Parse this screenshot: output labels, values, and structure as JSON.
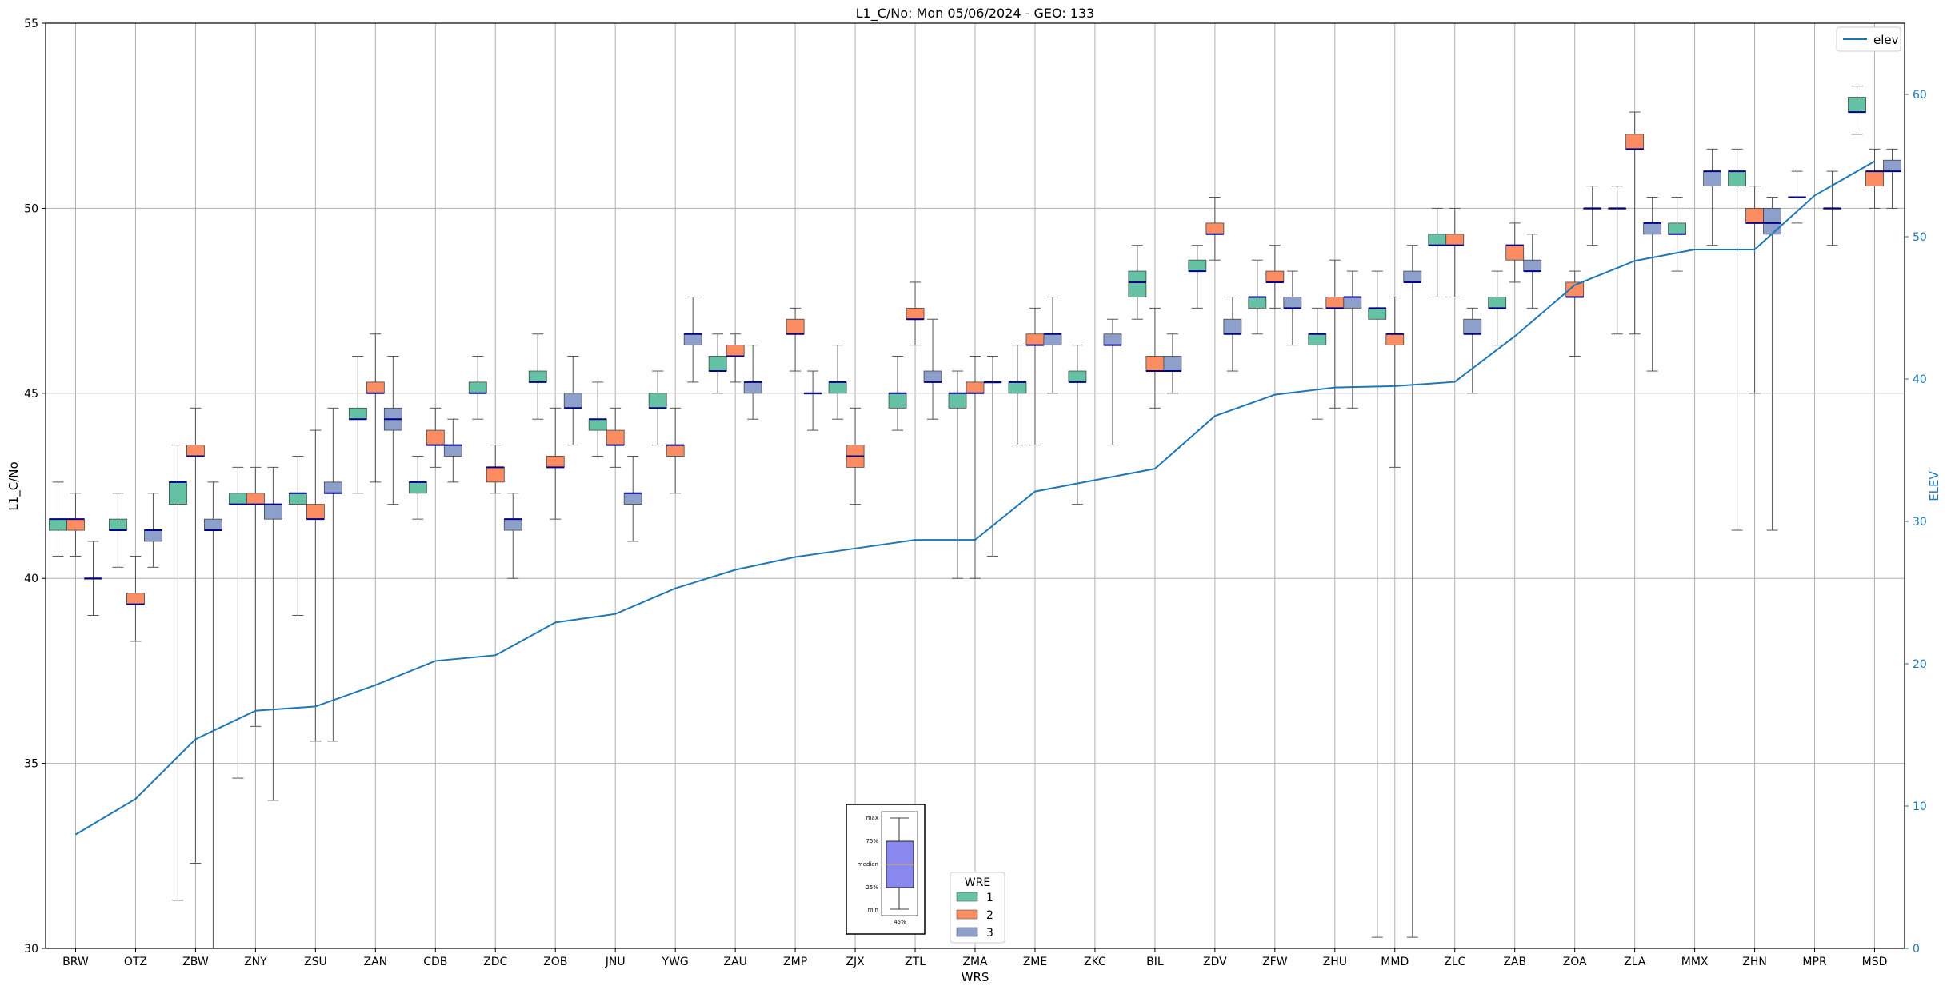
{
  "chart_data": {
    "type": "box",
    "title": "L1_C/No: Mon 05/06/2024 - GEO: 133",
    "xlabel": "WRS",
    "ylabel": "L1_C/No",
    "ylabel_right": "ELEV",
    "ylim": [
      30,
      55
    ],
    "ylim_right": [
      0,
      65
    ],
    "yticks": [
      30,
      35,
      40,
      45,
      50,
      55
    ],
    "yticks_right": [
      0,
      10,
      20,
      30,
      40,
      50,
      60
    ],
    "grid": true,
    "colors": {
      "1": "#66c2a5",
      "2": "#fc8d62",
      "3": "#8da0cb",
      "elev": "#1f77b4",
      "median": "#00008b"
    },
    "categories": [
      "BRW",
      "OTZ",
      "ZBW",
      "ZNY",
      "ZSU",
      "ZAN",
      "CDB",
      "ZDC",
      "ZOB",
      "JNU",
      "YWG",
      "ZAU",
      "ZMP",
      "ZJX",
      "ZTL",
      "ZMA",
      "ZME",
      "ZKC",
      "BIL",
      "ZDV",
      "ZFW",
      "ZHU",
      "MMD",
      "ZLC",
      "ZAB",
      "ZOA",
      "ZLA",
      "MMX",
      "ZHN",
      "MPR",
      "MSD"
    ],
    "elev": [
      8,
      10.5,
      14.7,
      16.7,
      17,
      18.5,
      20.2,
      20.6,
      22.9,
      23.5,
      25.3,
      26.6,
      27.5,
      28.1,
      28.7,
      28.7,
      32.1,
      32.9,
      33.7,
      37.4,
      38.9,
      39.4,
      39.5,
      39.8,
      43,
      46.6,
      48.3,
      49.1,
      49.1,
      52.9,
      55.3
    ],
    "legend_title": "WRE",
    "legend_elev": "elev",
    "series": [
      {
        "name": "1",
        "boxes": [
          [
            0,
            40.6,
            41.3,
            41.6,
            41.6,
            42.6
          ],
          [
            1,
            40.3,
            41.3,
            41.3,
            41.6,
            42.3
          ],
          [
            2,
            31.3,
            42,
            42.6,
            42.6,
            43.6
          ],
          [
            3,
            34.6,
            42,
            42,
            42.3,
            43
          ],
          [
            4,
            39,
            42,
            42.3,
            42.3,
            43.3
          ],
          [
            5,
            42.3,
            44.3,
            44.3,
            44.6,
            46
          ],
          [
            6,
            41.6,
            42.3,
            42.6,
            42.6,
            43.3
          ],
          [
            7,
            44.3,
            45,
            45,
            45.3,
            46
          ],
          [
            8,
            44.3,
            45.3,
            45.3,
            45.6,
            46.6
          ],
          [
            9,
            43.3,
            44,
            44.3,
            44.3,
            45.3
          ],
          [
            10,
            43.6,
            44.6,
            44.6,
            45,
            45.6
          ],
          [
            11,
            45,
            45.6,
            45.6,
            46,
            46.6
          ],
          [
            13,
            44.3,
            45,
            45.3,
            45.3,
            46.3
          ],
          [
            14,
            44,
            44.6,
            45,
            45,
            46
          ],
          [
            15,
            40,
            44.6,
            45,
            45,
            45.6
          ],
          [
            16,
            43.6,
            45,
            45.3,
            45.3,
            46.3
          ],
          [
            17,
            42,
            45.3,
            45.3,
            45.6,
            46.3
          ],
          [
            18,
            47,
            47.6,
            48,
            48.3,
            49
          ],
          [
            19,
            47.3,
            48.3,
            48.3,
            48.6,
            49
          ],
          [
            20,
            46.6,
            47.3,
            47.6,
            47.6,
            48.6
          ],
          [
            21,
            44.3,
            46.3,
            46.6,
            46.6,
            47.3
          ],
          [
            22,
            30.3,
            47,
            47.3,
            47.3,
            48.3
          ],
          [
            23,
            47.6,
            49,
            49,
            49.3,
            50
          ],
          [
            24,
            46.3,
            47.3,
            47.3,
            47.6,
            48.3
          ],
          [
            26,
            46.6,
            50,
            50,
            50,
            50.6
          ],
          [
            27,
            48.3,
            49.3,
            49.3,
            49.6,
            50.3
          ],
          [
            28,
            41.3,
            50.6,
            51,
            51,
            51.6
          ],
          [
            29,
            49.6,
            50.3,
            50.3,
            50.3,
            51
          ],
          [
            30,
            52,
            52.6,
            52.6,
            53,
            53.3
          ]
        ]
      },
      {
        "name": "2",
        "boxes": [
          [
            0,
            40.6,
            41.3,
            41.6,
            41.6,
            42.3
          ],
          [
            1,
            38.3,
            39.3,
            39.3,
            39.6,
            40.6
          ],
          [
            2,
            32.3,
            43.3,
            43.3,
            43.6,
            44.6
          ],
          [
            3,
            36,
            42,
            42,
            42.3,
            43
          ],
          [
            4,
            35.6,
            41.6,
            41.6,
            42,
            44
          ],
          [
            5,
            42.6,
            45,
            45,
            45.3,
            46.6
          ],
          [
            6,
            43,
            43.6,
            43.6,
            44,
            44.6
          ],
          [
            7,
            42.3,
            42.6,
            43,
            43,
            43.6
          ],
          [
            8,
            41.6,
            43,
            43,
            43.3,
            44.6
          ],
          [
            9,
            43,
            43.6,
            43.6,
            44,
            44.6
          ],
          [
            10,
            42.3,
            43.3,
            43.6,
            43.6,
            44.6
          ],
          [
            11,
            45.3,
            46,
            46,
            46.3,
            46.6
          ],
          [
            12,
            45.6,
            46.6,
            46.6,
            47,
            47.3
          ],
          [
            13,
            42,
            43,
            43.3,
            43.6,
            44.6
          ],
          [
            14,
            46.3,
            47,
            47,
            47.3,
            48
          ],
          [
            15,
            40,
            45,
            45,
            45.3,
            46
          ],
          [
            16,
            43.6,
            46.3,
            46.3,
            46.6,
            47.3
          ],
          [
            18,
            44.6,
            45.6,
            45.6,
            46,
            47.3
          ],
          [
            19,
            48.6,
            49.3,
            49.3,
            49.6,
            50.3
          ],
          [
            20,
            47.3,
            48,
            48,
            48.3,
            49
          ],
          [
            21,
            44.6,
            47.3,
            47.3,
            47.6,
            48.6
          ],
          [
            22,
            43,
            46.3,
            46.6,
            46.6,
            47.6
          ],
          [
            23,
            47.6,
            49,
            49,
            49.3,
            50
          ],
          [
            24,
            48,
            48.6,
            49,
            49,
            49.6
          ],
          [
            25,
            46,
            47.6,
            47.6,
            48,
            48.3
          ],
          [
            26,
            46.6,
            51.6,
            51.6,
            52,
            52.6
          ],
          [
            28,
            45,
            49.6,
            49.6,
            50,
            50.6
          ],
          [
            30,
            50,
            50.6,
            51,
            51,
            51.6
          ]
        ]
      },
      {
        "name": "3",
        "boxes": [
          [
            0,
            39,
            40,
            40,
            40,
            41
          ],
          [
            1,
            40.3,
            41,
            41.3,
            41.3,
            42.3
          ],
          [
            2,
            30,
            41.3,
            41.3,
            41.6,
            42.6
          ],
          [
            3,
            34,
            41.6,
            42,
            42,
            43
          ],
          [
            4,
            35.6,
            42.3,
            42.3,
            42.6,
            44.6
          ],
          [
            5,
            42,
            44,
            44.3,
            44.6,
            46
          ],
          [
            6,
            42.6,
            43.3,
            43.6,
            43.6,
            44.3
          ],
          [
            7,
            40,
            41.3,
            41.6,
            41.6,
            42.3
          ],
          [
            8,
            43.6,
            44.6,
            44.6,
            45,
            46
          ],
          [
            9,
            41,
            42,
            42.3,
            42.3,
            43.3
          ],
          [
            10,
            45.3,
            46.3,
            46.6,
            46.6,
            47.6
          ],
          [
            11,
            44.3,
            45,
            45.3,
            45.3,
            46.3
          ],
          [
            12,
            44,
            45,
            45,
            45,
            45.6
          ],
          [
            14,
            44.3,
            45.3,
            45.3,
            45.6,
            47
          ],
          [
            15,
            40.6,
            45.3,
            45.3,
            45.3,
            46
          ],
          [
            16,
            45,
            46.3,
            46.6,
            46.6,
            47.6
          ],
          [
            17,
            43.6,
            46.3,
            46.3,
            46.6,
            47
          ],
          [
            18,
            45,
            45.6,
            45.6,
            46,
            46.6
          ],
          [
            19,
            45.6,
            46.6,
            46.6,
            47,
            47.6
          ],
          [
            20,
            46.3,
            47.3,
            47.3,
            47.6,
            48.3
          ],
          [
            21,
            44.6,
            47.3,
            47.6,
            47.6,
            48.3
          ],
          [
            22,
            30.3,
            48,
            48,
            48.3,
            49
          ],
          [
            23,
            45,
            46.6,
            46.6,
            47,
            47.3
          ],
          [
            24,
            47.3,
            48.3,
            48.3,
            48.6,
            49.3
          ],
          [
            25,
            49,
            50,
            50,
            50,
            50.6
          ],
          [
            26,
            45.6,
            49.3,
            49.6,
            49.6,
            50.3
          ],
          [
            27,
            49,
            50.6,
            51,
            51,
            51.6
          ],
          [
            28,
            41.3,
            49.3,
            49.6,
            50,
            50.3
          ],
          [
            29,
            49,
            50,
            50,
            50,
            51
          ],
          [
            30,
            50,
            51,
            51,
            51.3,
            51.6
          ]
        ]
      }
    ],
    "key_labels": [
      "max",
      "75%",
      "median",
      "25%",
      "min",
      "45%"
    ]
  }
}
